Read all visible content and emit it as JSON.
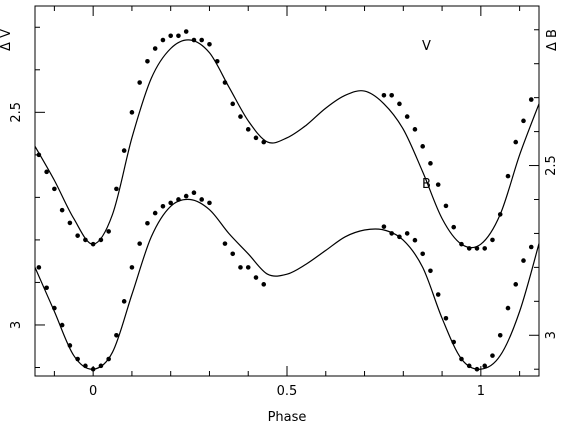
{
  "chart_data": {
    "type": "scatter",
    "title": "",
    "xlabel": "Phase",
    "ylabel_left": "Δ V",
    "ylabel_right": "Δ B",
    "xlim": [
      -0.15,
      1.15
    ],
    "x_ticks": [
      0,
      0.5,
      1
    ],
    "x_tick_labels": [
      "0",
      "0.5",
      "1"
    ],
    "ylim_left": [
      2.25,
      3.12
    ],
    "y_ticks_left": [
      2.5,
      3
    ],
    "y_tick_labels_left": [
      "2.5",
      "3"
    ],
    "ylim_right": [
      2.03,
      3.12
    ],
    "y_ticks_right": [
      2.5,
      3
    ],
    "y_tick_labels_right": [
      "2.5",
      "3"
    ],
    "grid": false,
    "series": [
      {
        "name": "V",
        "axis": "left",
        "color": "#000000",
        "fit_curve": {
          "phase": [
            -0.15,
            -0.1,
            -0.05,
            0.0,
            0.05,
            0.1,
            0.15,
            0.2,
            0.25,
            0.3,
            0.35,
            0.4,
            0.45,
            0.5,
            0.55,
            0.6,
            0.65,
            0.7,
            0.75,
            0.8,
            0.85,
            0.9,
            0.95,
            1.0,
            1.05,
            1.1,
            1.15
          ],
          "delta": [
            2.58,
            2.66,
            2.75,
            2.81,
            2.74,
            2.56,
            2.42,
            2.35,
            2.33,
            2.36,
            2.44,
            2.52,
            2.57,
            2.56,
            2.53,
            2.49,
            2.46,
            2.45,
            2.48,
            2.54,
            2.64,
            2.75,
            2.81,
            2.81,
            2.74,
            2.6,
            2.48
          ]
        },
        "points": {
          "phase": [
            -0.14,
            -0.12,
            -0.1,
            -0.08,
            -0.06,
            -0.04,
            -0.02,
            0.0,
            0.02,
            0.04,
            0.06,
            0.08,
            0.1,
            0.12,
            0.14,
            0.16,
            0.18,
            0.2,
            0.22,
            0.24,
            0.26,
            0.28,
            0.3,
            0.32,
            0.34,
            0.36,
            0.38,
            0.4,
            0.42,
            0.44,
            0.75,
            0.77,
            0.79,
            0.81,
            0.83,
            0.85,
            0.87,
            0.89,
            0.91,
            0.93,
            0.95,
            0.97,
            0.99,
            1.01,
            1.03,
            1.05,
            1.07,
            1.09,
            1.11,
            1.13
          ],
          "delta": [
            2.6,
            2.64,
            2.68,
            2.73,
            2.76,
            2.79,
            2.8,
            2.81,
            2.8,
            2.78,
            2.68,
            2.59,
            2.5,
            2.43,
            2.38,
            2.35,
            2.33,
            2.32,
            2.32,
            2.31,
            2.33,
            2.33,
            2.34,
            2.38,
            2.43,
            2.48,
            2.51,
            2.54,
            2.56,
            2.57,
            2.46,
            2.46,
            2.48,
            2.51,
            2.54,
            2.58,
            2.62,
            2.67,
            2.72,
            2.77,
            2.81,
            2.82,
            2.82,
            2.82,
            2.8,
            2.74,
            2.65,
            2.57,
            2.52,
            2.47
          ]
        }
      },
      {
        "name": "B",
        "axis": "right",
        "color": "#000000",
        "fit_curve": {
          "phase": [
            -0.15,
            -0.1,
            -0.05,
            0.0,
            0.05,
            0.1,
            0.15,
            0.2,
            0.25,
            0.3,
            0.35,
            0.4,
            0.45,
            0.5,
            0.55,
            0.6,
            0.65,
            0.7,
            0.75,
            0.8,
            0.85,
            0.9,
            0.95,
            1.0,
            1.05,
            1.1,
            1.15
          ],
          "delta": [
            2.8,
            2.93,
            3.06,
            3.1,
            3.05,
            2.88,
            2.71,
            2.62,
            2.6,
            2.63,
            2.7,
            2.76,
            2.82,
            2.82,
            2.79,
            2.75,
            2.71,
            2.69,
            2.69,
            2.72,
            2.8,
            2.95,
            3.07,
            3.1,
            3.06,
            2.93,
            2.73
          ]
        },
        "points": {
          "phase": [
            -0.14,
            -0.12,
            -0.1,
            -0.08,
            -0.06,
            -0.04,
            -0.02,
            0.0,
            0.02,
            0.04,
            0.06,
            0.08,
            0.1,
            0.12,
            0.14,
            0.16,
            0.18,
            0.2,
            0.22,
            0.24,
            0.26,
            0.28,
            0.3,
            0.34,
            0.36,
            0.38,
            0.4,
            0.42,
            0.44,
            0.75,
            0.77,
            0.79,
            0.81,
            0.83,
            0.85,
            0.87,
            0.89,
            0.91,
            0.93,
            0.95,
            0.97,
            0.99,
            1.01,
            1.03,
            1.05,
            1.07,
            1.09,
            1.11,
            1.13
          ],
          "delta": [
            2.8,
            2.86,
            2.92,
            2.97,
            3.03,
            3.07,
            3.09,
            3.1,
            3.09,
            3.07,
            3.0,
            2.9,
            2.8,
            2.73,
            2.67,
            2.64,
            2.62,
            2.61,
            2.6,
            2.59,
            2.58,
            2.6,
            2.61,
            2.73,
            2.76,
            2.8,
            2.8,
            2.83,
            2.85,
            2.68,
            2.7,
            2.71,
            2.7,
            2.72,
            2.76,
            2.81,
            2.88,
            2.95,
            3.02,
            3.07,
            3.09,
            3.1,
            3.09,
            3.06,
            3.0,
            2.92,
            2.85,
            2.78,
            2.74
          ]
        }
      }
    ]
  }
}
